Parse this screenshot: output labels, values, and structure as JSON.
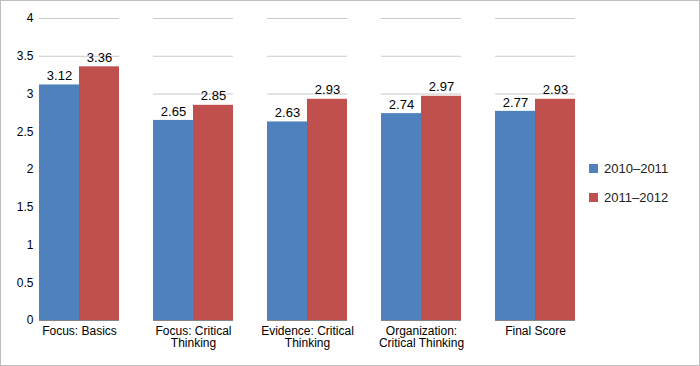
{
  "chart_data": {
    "type": "bar",
    "categories": [
      "Focus: Basics",
      "Focus: Critical Thinking",
      "Evidence: Critical Thinking",
      "Organization: Critical Thinking",
      "Final Score"
    ],
    "series": [
      {
        "name": "2010–2011",
        "color": "#4F81BD",
        "values": [
          3.12,
          2.65,
          2.63,
          2.74,
          2.77
        ]
      },
      {
        "name": "2011–2012",
        "color": "#C0504D",
        "values": [
          3.36,
          2.85,
          2.93,
          2.97,
          2.93
        ]
      }
    ],
    "ylim": [
      0,
      4
    ],
    "yticks": [
      0,
      0.5,
      1,
      1.5,
      2,
      2.5,
      3,
      3.5,
      4
    ],
    "grid": true,
    "legend": "right",
    "data_labels": true
  }
}
